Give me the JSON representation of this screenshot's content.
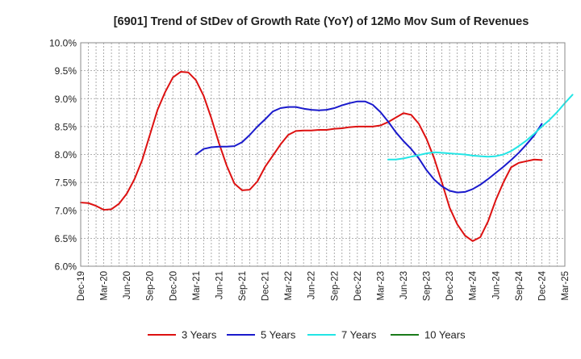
{
  "chart_data": {
    "type": "line",
    "title": "[6901]  Trend of StDev of Growth Rate (YoY) of 12Mo Mov Sum of Revenues",
    "xlabel": "",
    "ylabel": "",
    "ylim": [
      6.0,
      10.0
    ],
    "y_ticks": [
      "10.0%",
      "9.5%",
      "9.0%",
      "8.5%",
      "8.0%",
      "7.5%",
      "7.0%",
      "6.5%",
      "6.0%"
    ],
    "x_tick_labels": [
      "Dec-19",
      "Mar-20",
      "Jun-20",
      "Sep-20",
      "Dec-20",
      "Mar-21",
      "Jun-21",
      "Sep-21",
      "Dec-21",
      "Mar-22",
      "Jun-22",
      "Sep-22",
      "Dec-22",
      "Mar-23",
      "Jun-23",
      "Sep-23",
      "Dec-23",
      "Mar-24",
      "Jun-24",
      "Sep-24",
      "Dec-24",
      "Mar-25"
    ],
    "grid": true,
    "legend_position": "bottom",
    "series": [
      {
        "name": "3 Years",
        "color": "#dd1111",
        "start_month": 0,
        "values": [
          7.14,
          7.13,
          7.08,
          7.01,
          7.02,
          7.12,
          7.3,
          7.56,
          7.9,
          8.35,
          8.8,
          9.12,
          9.38,
          9.48,
          9.47,
          9.33,
          9.05,
          8.65,
          8.2,
          7.8,
          7.48,
          7.36,
          7.37,
          7.52,
          7.78,
          7.98,
          8.18,
          8.35,
          8.42,
          8.43,
          8.43,
          8.44,
          8.44,
          8.46,
          8.47,
          8.49,
          8.5,
          8.5,
          8.5,
          8.52,
          8.58,
          8.66,
          8.74,
          8.71,
          8.55,
          8.28,
          7.93,
          7.5,
          7.05,
          6.75,
          6.55,
          6.45,
          6.52,
          6.8,
          7.18,
          7.5,
          7.77,
          7.85,
          7.88,
          7.91,
          7.9
        ]
      },
      {
        "name": "5 Years",
        "color": "#1a1acc",
        "start_month": 15,
        "values": [
          8.0,
          8.1,
          8.13,
          8.14,
          8.14,
          8.15,
          8.22,
          8.35,
          8.5,
          8.63,
          8.77,
          8.83,
          8.85,
          8.85,
          8.82,
          8.8,
          8.79,
          8.8,
          8.83,
          8.88,
          8.92,
          8.95,
          8.95,
          8.89,
          8.76,
          8.59,
          8.4,
          8.24,
          8.1,
          7.93,
          7.72,
          7.55,
          7.43,
          7.35,
          7.32,
          7.33,
          7.38,
          7.46,
          7.56,
          7.67,
          7.78,
          7.9,
          8.03,
          8.18,
          8.34,
          8.55
        ]
      },
      {
        "name": "7 Years",
        "color": "#22e5e5",
        "start_month": 40,
        "values": [
          7.91,
          7.91,
          7.93,
          7.96,
          7.99,
          8.02,
          8.04,
          8.03,
          8.02,
          8.01,
          8.0,
          7.98,
          7.97,
          7.96,
          7.97,
          8.0,
          8.06,
          8.15,
          8.25,
          8.37,
          8.5,
          8.62,
          8.76,
          8.92,
          9.07
        ]
      },
      {
        "name": "10 Years",
        "color": "#1a7a1a",
        "start_month": 0,
        "values": []
      }
    ]
  }
}
